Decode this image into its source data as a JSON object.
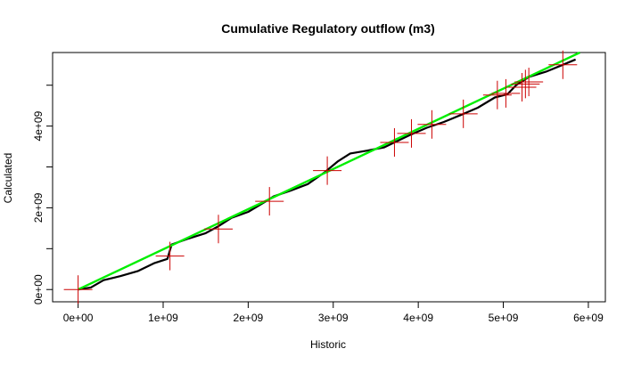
{
  "chart_data": {
    "type": "scatter",
    "title": "Cumulative Regulatory outflow (m3)",
    "xlabel": "Historic",
    "ylabel": "Calculated",
    "xlim": [
      -300000000,
      6200000000
    ],
    "ylim": [
      -300000000,
      5800000000
    ],
    "x_ticks": [
      0,
      1000000000,
      2000000000,
      3000000000,
      4000000000,
      5000000000,
      6000000000
    ],
    "x_tick_labels": [
      "0e+00",
      "1e+09",
      "2e+09",
      "3e+09",
      "4e+09",
      "5e+09",
      "6e+09"
    ],
    "y_ticks": [
      0,
      1000000000,
      2000000000,
      3000000000,
      4000000000,
      5000000000
    ],
    "y_tick_labels": [
      "0e+00",
      "",
      "2e+09",
      "",
      "4e+09",
      ""
    ],
    "grid": false,
    "colors": {
      "calculated": "#000000",
      "reference": "#00ee00",
      "points": "#cc0000"
    },
    "series": [
      {
        "style": "line",
        "color": "#000000",
        "x": [
          0,
          150000000,
          300000000,
          500000000,
          700000000,
          900000000,
          1050000000,
          1100000000,
          1300000000,
          1500000000,
          1650000000,
          1800000000,
          2000000000,
          2200000000,
          2300000000,
          2500000000,
          2700000000,
          2900000000,
          3050000000,
          3200000000,
          3400000000,
          3600000000,
          3700000000,
          3900000000,
          4100000000,
          4300000000,
          4500000000,
          4700000000,
          4900000000,
          5050000000,
          5150000000,
          5300000000,
          5500000000,
          5700000000,
          5850000000
        ],
        "y": [
          0,
          50000000,
          230000000,
          330000000,
          450000000,
          650000000,
          750000000,
          1100000000,
          1250000000,
          1380000000,
          1550000000,
          1750000000,
          1900000000,
          2150000000,
          2280000000,
          2420000000,
          2580000000,
          2870000000,
          3130000000,
          3330000000,
          3400000000,
          3480000000,
          3580000000,
          3780000000,
          3960000000,
          4100000000,
          4270000000,
          4450000000,
          4700000000,
          4780000000,
          5000000000,
          5200000000,
          5330000000,
          5500000000,
          5630000000
        ]
      },
      {
        "style": "line",
        "color": "#00ee00",
        "x": [
          0,
          5900000000
        ],
        "y": [
          0,
          5800000000
        ]
      },
      {
        "style": "points",
        "color": "#cc0000",
        "x": [
          0,
          1080000000,
          1650000000,
          2250000000,
          2930000000,
          3720000000,
          3920000000,
          4160000000,
          4530000000,
          4930000000,
          5030000000,
          5220000000,
          5260000000,
          5300000000,
          5700000000
        ],
        "y": [
          0,
          820000000,
          1480000000,
          2160000000,
          2910000000,
          3600000000,
          3820000000,
          4040000000,
          4300000000,
          4760000000,
          4800000000,
          4950000000,
          5030000000,
          5080000000,
          5500000000
        ]
      }
    ]
  }
}
